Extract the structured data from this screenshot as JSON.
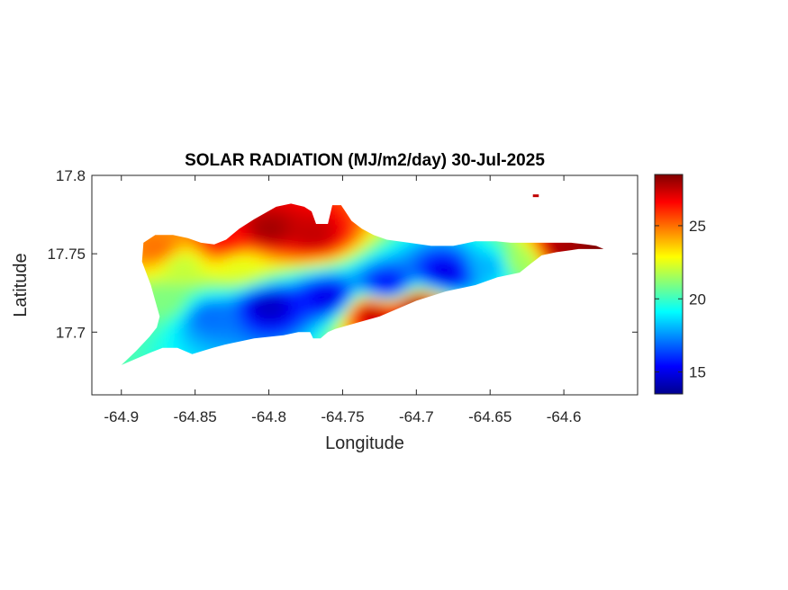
{
  "figure": {
    "title": "SOLAR RADIATION (MJ/m2/day) 30-Jul-2025",
    "xlabel": "Longitude",
    "ylabel": "Latitude"
  },
  "axes": {
    "xlim": [
      -64.92,
      -64.55
    ],
    "ylim": [
      17.66,
      17.8
    ],
    "xticks": [
      {
        "value": -64.9,
        "label": "-64.9"
      },
      {
        "value": -64.85,
        "label": "-64.85"
      },
      {
        "value": -64.8,
        "label": "-64.8"
      },
      {
        "value": -64.75,
        "label": "-64.75"
      },
      {
        "value": -64.7,
        "label": "-64.7"
      },
      {
        "value": -64.65,
        "label": "-64.65"
      },
      {
        "value": -64.6,
        "label": "-64.6"
      }
    ],
    "yticks": [
      {
        "value": 17.7,
        "label": "17.7"
      },
      {
        "value": 17.75,
        "label": "17.75"
      },
      {
        "value": 17.8,
        "label": "17.8"
      }
    ]
  },
  "colorbar": {
    "colormap": "jet",
    "range": [
      13.5,
      28.5
    ],
    "ticks": [
      {
        "value": 15,
        "label": "15"
      },
      {
        "value": 20,
        "label": "20"
      },
      {
        "value": 25,
        "label": "25"
      }
    ]
  },
  "chart_data": {
    "type": "heatmap",
    "title": "SOLAR RADIATION (MJ/m2/day) 30-Jul-2025",
    "xlabel": "Longitude",
    "ylabel": "Latitude",
    "xlim": [
      -64.92,
      -64.55
    ],
    "ylim": [
      17.66,
      17.8
    ],
    "clim": [
      13.5,
      28.5
    ],
    "colormap": "jet",
    "region_outline": [
      [
        -64.9,
        17.679
      ],
      [
        -64.89,
        17.688
      ],
      [
        -64.881,
        17.697
      ],
      [
        -64.876,
        17.703
      ],
      [
        -64.874,
        17.71
      ],
      [
        -64.88,
        17.73
      ],
      [
        -64.886,
        17.745
      ],
      [
        -64.885,
        17.757
      ],
      [
        -64.877,
        17.762
      ],
      [
        -64.865,
        17.762
      ],
      [
        -64.855,
        17.76
      ],
      [
        -64.846,
        17.757
      ],
      [
        -64.837,
        17.756
      ],
      [
        -64.829,
        17.759
      ],
      [
        -64.82,
        17.766
      ],
      [
        -64.81,
        17.772
      ],
      [
        -64.795,
        17.78
      ],
      [
        -64.785,
        17.782
      ],
      [
        -64.776,
        17.78
      ],
      [
        -64.771,
        17.777
      ],
      [
        -64.768,
        17.769
      ],
      [
        -64.76,
        17.769
      ],
      [
        -64.757,
        17.781
      ],
      [
        -64.751,
        17.781
      ],
      [
        -64.744,
        17.771
      ],
      [
        -64.737,
        17.766
      ],
      [
        -64.729,
        17.762
      ],
      [
        -64.72,
        17.759
      ],
      [
        -64.705,
        17.757
      ],
      [
        -64.69,
        17.755
      ],
      [
        -64.675,
        17.755
      ],
      [
        -64.67,
        17.756
      ],
      [
        -64.66,
        17.758
      ],
      [
        -64.646,
        17.758
      ],
      [
        -64.636,
        17.757
      ],
      [
        -64.625,
        17.757
      ],
      [
        -64.61,
        17.757
      ],
      [
        -64.595,
        17.757
      ],
      [
        -64.585,
        17.756
      ],
      [
        -64.578,
        17.755
      ],
      [
        -64.573,
        17.753
      ],
      [
        -64.59,
        17.753
      ],
      [
        -64.605,
        17.751
      ],
      [
        -64.615,
        17.749
      ],
      [
        -64.622,
        17.744
      ],
      [
        -64.63,
        17.738
      ],
      [
        -64.645,
        17.735
      ],
      [
        -64.66,
        17.73
      ],
      [
        -64.68,
        17.726
      ],
      [
        -64.7,
        17.72
      ],
      [
        -64.715,
        17.714
      ],
      [
        -64.725,
        17.71
      ],
      [
        -64.74,
        17.706
      ],
      [
        -64.755,
        17.702
      ],
      [
        -64.76,
        17.7
      ],
      [
        -64.765,
        17.696
      ],
      [
        -64.77,
        17.696
      ],
      [
        -64.772,
        17.7
      ],
      [
        -64.78,
        17.7
      ],
      [
        -64.79,
        17.698
      ],
      [
        -64.8,
        17.697
      ],
      [
        -64.81,
        17.696
      ],
      [
        -64.82,
        17.694
      ],
      [
        -64.83,
        17.692
      ],
      [
        -64.838,
        17.69
      ],
      [
        -64.845,
        17.688
      ],
      [
        -64.852,
        17.686
      ],
      [
        -64.857,
        17.688
      ],
      [
        -64.862,
        17.69
      ],
      [
        -64.872,
        17.69
      ],
      [
        -64.88,
        17.687
      ],
      [
        -64.89,
        17.683
      ],
      [
        -64.9,
        17.679
      ]
    ],
    "islet": [
      [
        -64.621,
        17.787
      ],
      [
        -64.617,
        17.787
      ]
    ],
    "fields": [
      {
        "lon": -64.8,
        "lat": 17.765,
        "value": 28.0
      },
      {
        "lon": -64.77,
        "lat": 17.762,
        "value": 27.5
      },
      {
        "lon": -64.83,
        "lat": 17.757,
        "value": 26.5
      },
      {
        "lon": -64.875,
        "lat": 17.752,
        "value": 25.0
      },
      {
        "lon": -64.86,
        "lat": 17.743,
        "value": 22.0
      },
      {
        "lon": -64.82,
        "lat": 17.742,
        "value": 22.5
      },
      {
        "lon": -64.87,
        "lat": 17.72,
        "value": 21.0
      },
      {
        "lon": -64.84,
        "lat": 17.71,
        "value": 17.0
      },
      {
        "lon": -64.8,
        "lat": 17.716,
        "value": 14.5
      },
      {
        "lon": -64.76,
        "lat": 17.722,
        "value": 15.0
      },
      {
        "lon": -64.72,
        "lat": 17.73,
        "value": 15.5
      },
      {
        "lon": -64.68,
        "lat": 17.738,
        "value": 15.0
      },
      {
        "lon": -64.65,
        "lat": 17.742,
        "value": 18.0
      },
      {
        "lon": -64.63,
        "lat": 17.745,
        "value": 21.5
      },
      {
        "lon": -64.73,
        "lat": 17.712,
        "value": 27.5
      },
      {
        "lon": -64.7,
        "lat": 17.715,
        "value": 28.0
      },
      {
        "lon": -64.6,
        "lat": 17.753,
        "value": 28.0
      },
      {
        "lon": -64.575,
        "lat": 17.754,
        "value": 28.5
      }
    ]
  }
}
